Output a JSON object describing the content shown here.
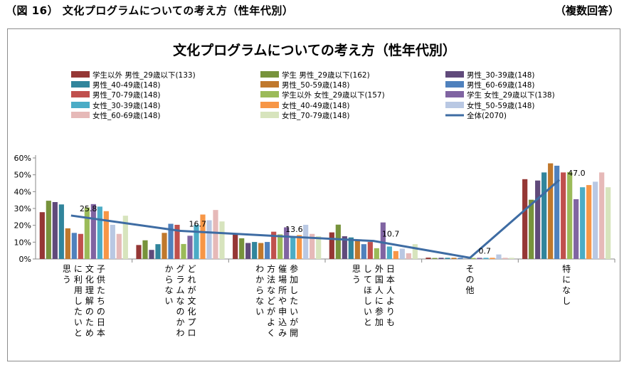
{
  "header": {
    "figure_title": "（図 16） 文化プログラムについての考え方（性年代別）",
    "note": "（複数回答）"
  },
  "chart_data": {
    "type": "bar",
    "title": "文化プログラムについての考え方（性年代別）",
    "xlabel": "",
    "ylabel": "",
    "ylim": [
      0,
      60
    ],
    "yticks": [
      "0%",
      "10%",
      "20%",
      "30%",
      "40%",
      "50%",
      "60%"
    ],
    "grid": false,
    "legend_position": "top",
    "categories": [
      "子供たちの日本文化理解のために利用したいと思う",
      "どれが文化プログラムなのかわからない",
      "参加したいが開催場所や申込み方法などがよくわからない",
      "日本人よりも外国人に参加してほしいと思う",
      "その他",
      "特になし"
    ],
    "series": [
      {
        "name": "学生以外 男性_29歳以下(133)",
        "color": "#953735",
        "values": [
          27.8,
          8.3,
          15.0,
          15.8,
          0.8,
          47.4
        ]
      },
      {
        "name": "学生 男性_29歳以下(162)",
        "color": "#77933c",
        "values": [
          34.6,
          11.1,
          12.3,
          20.4,
          0.6,
          35.2
        ]
      },
      {
        "name": "男性_30-39歳(148)",
        "color": "#604a7b",
        "values": [
          33.8,
          5.4,
          9.5,
          13.5,
          0.7,
          46.6
        ]
      },
      {
        "name": "男性_40-49歳(148)",
        "color": "#31859c",
        "values": [
          32.4,
          8.8,
          10.1,
          12.8,
          0.7,
          51.4
        ]
      },
      {
        "name": "男性_50-59歳(148)",
        "color": "#c0782c",
        "values": [
          18.2,
          15.5,
          9.5,
          11.5,
          0.7,
          56.8
        ]
      },
      {
        "name": "男性_60-69歳(148)",
        "color": "#4f81bd",
        "values": [
          15.5,
          20.9,
          10.1,
          8.8,
          0.7,
          55.4
        ]
      },
      {
        "name": "男性_70-79歳(148)",
        "color": "#c0504d",
        "values": [
          14.9,
          20.3,
          16.2,
          10.1,
          0.0,
          51.4
        ]
      },
      {
        "name": "学生以外 女性_29歳以下(157)",
        "color": "#9bbb59",
        "values": [
          30.6,
          8.9,
          14.6,
          6.4,
          0.6,
          51.6
        ]
      },
      {
        "name": "学生 女性_29歳以下(138)",
        "color": "#8064a2",
        "values": [
          32.6,
          13.8,
          18.8,
          21.7,
          0.7,
          35.5
        ]
      },
      {
        "name": "女性_30-39歳(148)",
        "color": "#4bacc6",
        "values": [
          31.1,
          20.3,
          12.8,
          7.4,
          0.7,
          42.6
        ]
      },
      {
        "name": "女性_40-49歳(148)",
        "color": "#f79646",
        "values": [
          28.4,
          26.4,
          14.2,
          4.7,
          0.7,
          43.9
        ]
      },
      {
        "name": "女性_50-59歳(148)",
        "color": "#b9c8e3",
        "values": [
          20.3,
          23.0,
          20.3,
          6.1,
          2.7,
          45.9
        ]
      },
      {
        "name": "女性_60-69歳(148)",
        "color": "#e6b9b8",
        "values": [
          14.9,
          29.1,
          14.9,
          3.4,
          0.7,
          51.4
        ]
      },
      {
        "name": "女性_70-79歳(148)",
        "color": "#d7e4bd",
        "values": [
          25.7,
          22.3,
          13.5,
          8.8,
          0.7,
          42.6
        ]
      }
    ],
    "line": {
      "name": "全体(2070)",
      "color": "#3e6ca3",
      "values": [
        25.8,
        16.7,
        13.6,
        10.7,
        0.7,
        47.0
      ],
      "labels": [
        "25.8",
        "16.7",
        "13.6",
        "10.7",
        "0.7",
        "47.0"
      ]
    }
  }
}
